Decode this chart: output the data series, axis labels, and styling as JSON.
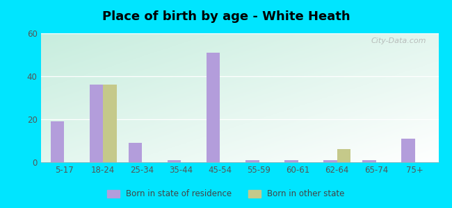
{
  "categories": [
    "5-17",
    "18-24",
    "25-34",
    "35-44",
    "45-54",
    "55-59",
    "60-61",
    "62-64",
    "65-74",
    "75+"
  ],
  "born_in_state": [
    19,
    36,
    9,
    1,
    51,
    1,
    1,
    1,
    1,
    11
  ],
  "born_in_other": [
    0,
    36,
    0,
    0,
    0,
    0,
    0,
    6,
    0,
    0
  ],
  "bar_color_state": "#b39ddb",
  "bar_color_other": "#c5c98a",
  "title": "Place of birth by age - White Heath",
  "ylim": [
    0,
    60
  ],
  "yticks": [
    0,
    20,
    40,
    60
  ],
  "background_outer": "#00e5ff",
  "grad_top": "#c8ecd8",
  "grad_bottom": "#eaf6ee",
  "grad_right": "#ddeef8",
  "legend_label_state": "Born in state of residence",
  "legend_label_other": "Born in other state",
  "watermark": "City-Data.com",
  "bar_width": 0.35
}
